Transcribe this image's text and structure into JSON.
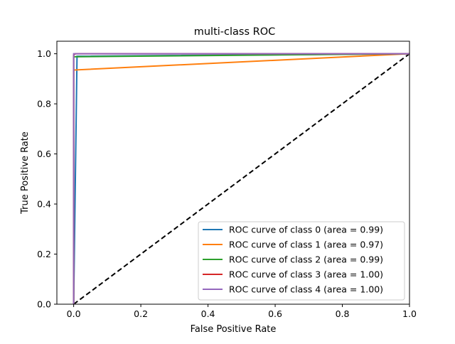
{
  "chart_data": {
    "type": "line",
    "title": "multi-class ROC",
    "xlabel": "False Positive Rate",
    "ylabel": "True Positive Rate",
    "xlim": [
      -0.05,
      1.0
    ],
    "ylim": [
      0.0,
      1.05
    ],
    "xticks": [
      0.0,
      0.2,
      0.4,
      0.6,
      0.8,
      1.0
    ],
    "yticks": [
      0.0,
      0.2,
      0.4,
      0.6,
      0.8,
      1.0
    ],
    "xtick_labels": [
      "0.0",
      "0.2",
      "0.4",
      "0.6",
      "0.8",
      "1.0"
    ],
    "ytick_labels": [
      "0.0",
      "0.2",
      "0.4",
      "0.6",
      "0.8",
      "1.0"
    ],
    "grid": false,
    "legend_position": "lower-right",
    "series": [
      {
        "name": "ROC curve of class 0 (area = 0.99)",
        "color": "#1f77b4",
        "x": [
          0.0,
          0.0,
          0.01,
          1.0
        ],
        "y": [
          0.0,
          0.0,
          0.99,
          1.0
        ]
      },
      {
        "name": "ROC curve of class 1 (area = 0.97)",
        "color": "#ff7f0e",
        "x": [
          0.0,
          0.0,
          1.0
        ],
        "y": [
          0.0,
          0.935,
          1.0
        ]
      },
      {
        "name": "ROC curve of class 2 (area = 0.99)",
        "color": "#2ca02c",
        "x": [
          0.0,
          0.0,
          1.0
        ],
        "y": [
          0.0,
          0.988,
          1.0
        ]
      },
      {
        "name": "ROC curve of class 3 (area = 1.00)",
        "color": "#d62728",
        "x": [
          0.0,
          0.0,
          0.005,
          1.0
        ],
        "y": [
          0.0,
          0.995,
          1.0,
          1.0
        ]
      },
      {
        "name": "ROC curve of class 4 (area = 1.00)",
        "color": "#9467bd",
        "x": [
          0.0,
          0.0,
          1.0
        ],
        "y": [
          0.0,
          1.0,
          1.0
        ]
      }
    ],
    "reference_line": {
      "x": [
        0.0,
        1.0
      ],
      "y": [
        0.0,
        1.0
      ],
      "color": "#000000",
      "style": "dashed"
    }
  }
}
